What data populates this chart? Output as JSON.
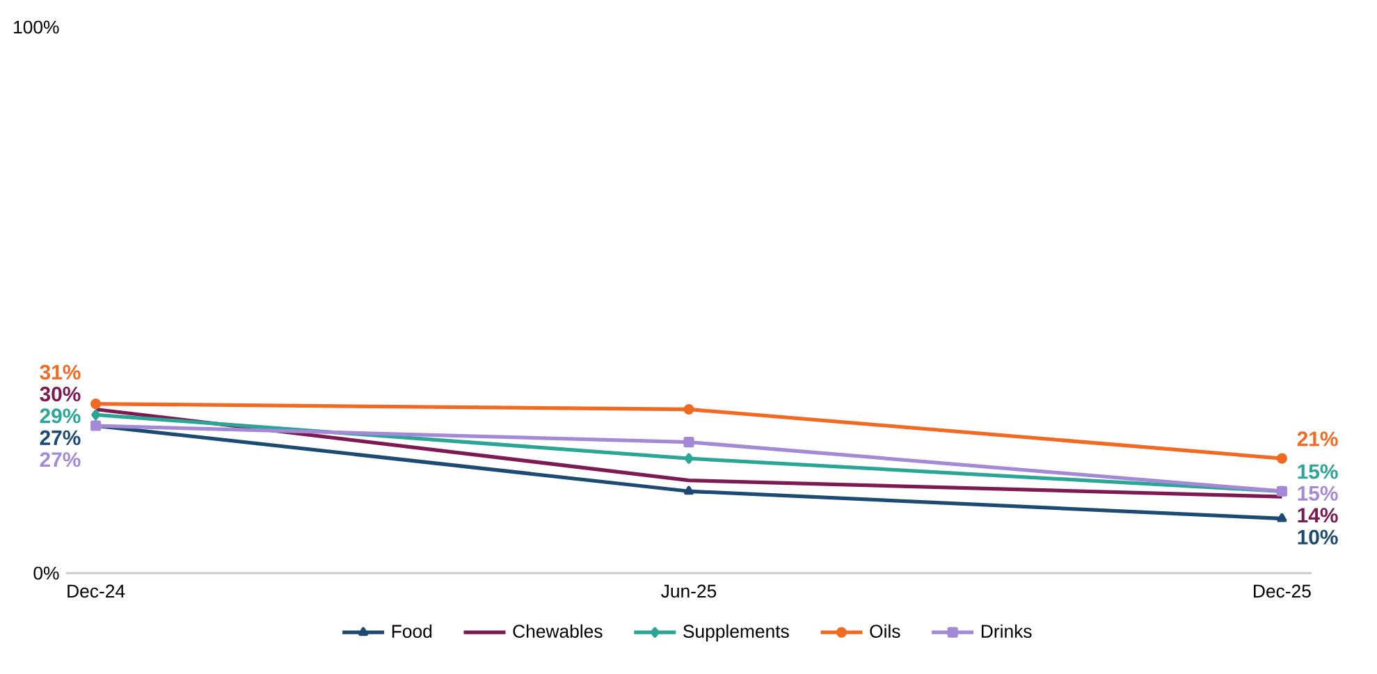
{
  "chart_data": {
    "type": "line",
    "categories": [
      "Dec-24",
      "Jun-25",
      "Dec-25"
    ],
    "series": [
      {
        "name": "Food",
        "color": "#1d4a72",
        "marker": "triangle",
        "values": [
          27,
          15,
          10
        ],
        "value_labels": [
          "27%",
          null,
          "10%"
        ]
      },
      {
        "name": "Chewables",
        "color": "#7d1a52",
        "marker": "none",
        "values": [
          30,
          17,
          14
        ],
        "value_labels": [
          "30%",
          null,
          "14%"
        ]
      },
      {
        "name": "Supplements",
        "color": "#2aa596",
        "marker": "diamond",
        "values": [
          29,
          21,
          15
        ],
        "value_labels": [
          "29%",
          null,
          "15%"
        ]
      },
      {
        "name": "Oils",
        "color": "#f26a22",
        "marker": "circle",
        "values": [
          31,
          30,
          21
        ],
        "value_labels": [
          "31%",
          null,
          "21%"
        ]
      },
      {
        "name": "Drinks",
        "color": "#a48ad6",
        "marker": "square",
        "values": [
          27,
          24,
          15
        ],
        "value_labels": [
          "27%",
          null,
          "15%"
        ]
      }
    ],
    "ylim": [
      0,
      100
    ],
    "yticks": [
      {
        "value": 0,
        "label": "0%"
      },
      {
        "value": 100,
        "label": "100%"
      }
    ],
    "legend": "bottom"
  }
}
